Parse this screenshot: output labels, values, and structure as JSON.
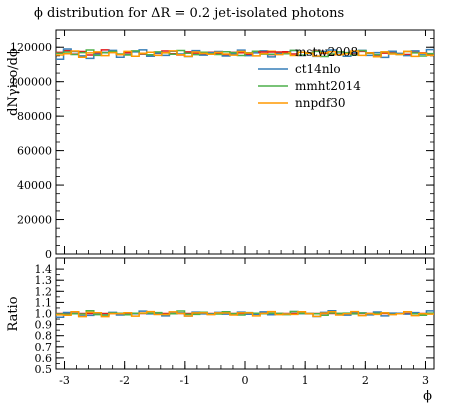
{
  "chart_data": {
    "type": "line",
    "title": "ϕ distribution for ΔR = 0.2 jet-isolated photons",
    "xlabel": "ϕ",
    "ylabel": "dNγiso/dϕ",
    "ratio_ylabel": "Ratio",
    "xlim": [
      -3.1416,
      3.1416
    ],
    "ylim": [
      0,
      130000
    ],
    "ratio_ylim": [
      0.5,
      1.5
    ],
    "x_ticks": [
      -3,
      -2,
      -1,
      0,
      1,
      2,
      3
    ],
    "y_ticks": [
      0,
      20000,
      40000,
      60000,
      80000,
      100000,
      120000
    ],
    "ratio_y_ticks": [
      0.5,
      0.6,
      0.7,
      0.8,
      0.9,
      1.0,
      1.1,
      1.2,
      1.3,
      1.4
    ],
    "legend_position": "top-right",
    "bins": 50,
    "series": [
      {
        "name": "mstw2008",
        "color": "#e41a1c",
        "values": [
          117000,
          118000,
          116000,
          117500,
          115500,
          116500,
          118500,
          117000,
          115800,
          116800,
          117600,
          116000,
          115200,
          116400,
          117800,
          116200,
          115500,
          117300,
          116600,
          115800,
          117100,
          116300,
          115600,
          117000,
          116800,
          115900,
          117500,
          116200,
          115700,
          116900,
          117400,
          116100,
          115300,
          116700,
          117900,
          116400,
          115600,
          117200,
          116500,
          115900,
          117600,
          116800,
          115400,
          116600,
          117300,
          116100,
          115800,
          117000,
          116700,
          115900
        ]
      },
      {
        "name": "ct14nlo",
        "color": "#377eb8",
        "values": [
          113000,
          119000,
          117500,
          115000,
          113500,
          116000,
          117000,
          118200,
          114200,
          115800,
          117300,
          118500,
          114800,
          116600,
          115300,
          117700,
          116100,
          114600,
          118000,
          115400,
          116900,
          117500,
          114900,
          116200,
          118300,
          115100,
          116700,
          117900,
          114400,
          116500,
          117100,
          118100,
          115200,
          116300,
          114700,
          117600,
          118400,
          115900,
          114800,
          116800,
          118200,
          115300,
          116900,
          114100,
          117700,
          116400,
          115100,
          117900,
          116000,
          118600
        ]
      },
      {
        "name": "mmht2014",
        "color": "#4daf4a",
        "values": [
          116500,
          117200,
          115800,
          116900,
          118400,
          115300,
          116800,
          117500,
          116100,
          115500,
          117900,
          116300,
          115600,
          117300,
          116700,
          115900,
          118100,
          116500,
          115700,
          117100,
          116300,
          115800,
          117400,
          116900,
          115200,
          116800,
          117700,
          116000,
          115900,
          117000,
          116200,
          118200,
          115400,
          116700,
          117600,
          114600,
          116100,
          117300,
          116900,
          115500,
          118000,
          116500,
          115700,
          117200,
          116400,
          115800,
          117500,
          116700,
          114900,
          116300
        ]
      },
      {
        "name": "nnpdf30",
        "color": "#ff9900",
        "values": [
          115500,
          116200,
          117800,
          114200,
          116700,
          117300,
          115100,
          116900,
          115700,
          117600,
          114800,
          116500,
          117100,
          115300,
          116800,
          117900,
          115600,
          114700,
          117200,
          116400,
          115900,
          117000,
          116100,
          115400,
          117500,
          116600,
          115000,
          116300,
          117700,
          115700,
          116900,
          115200,
          117100,
          116500,
          114900,
          116800,
          117400,
          115600,
          116200,
          117800,
          115300,
          116700,
          114500,
          117300,
          116100,
          115800,
          117600,
          114700,
          116500,
          115300
        ]
      }
    ],
    "ratio_reference": "mstw2008"
  }
}
